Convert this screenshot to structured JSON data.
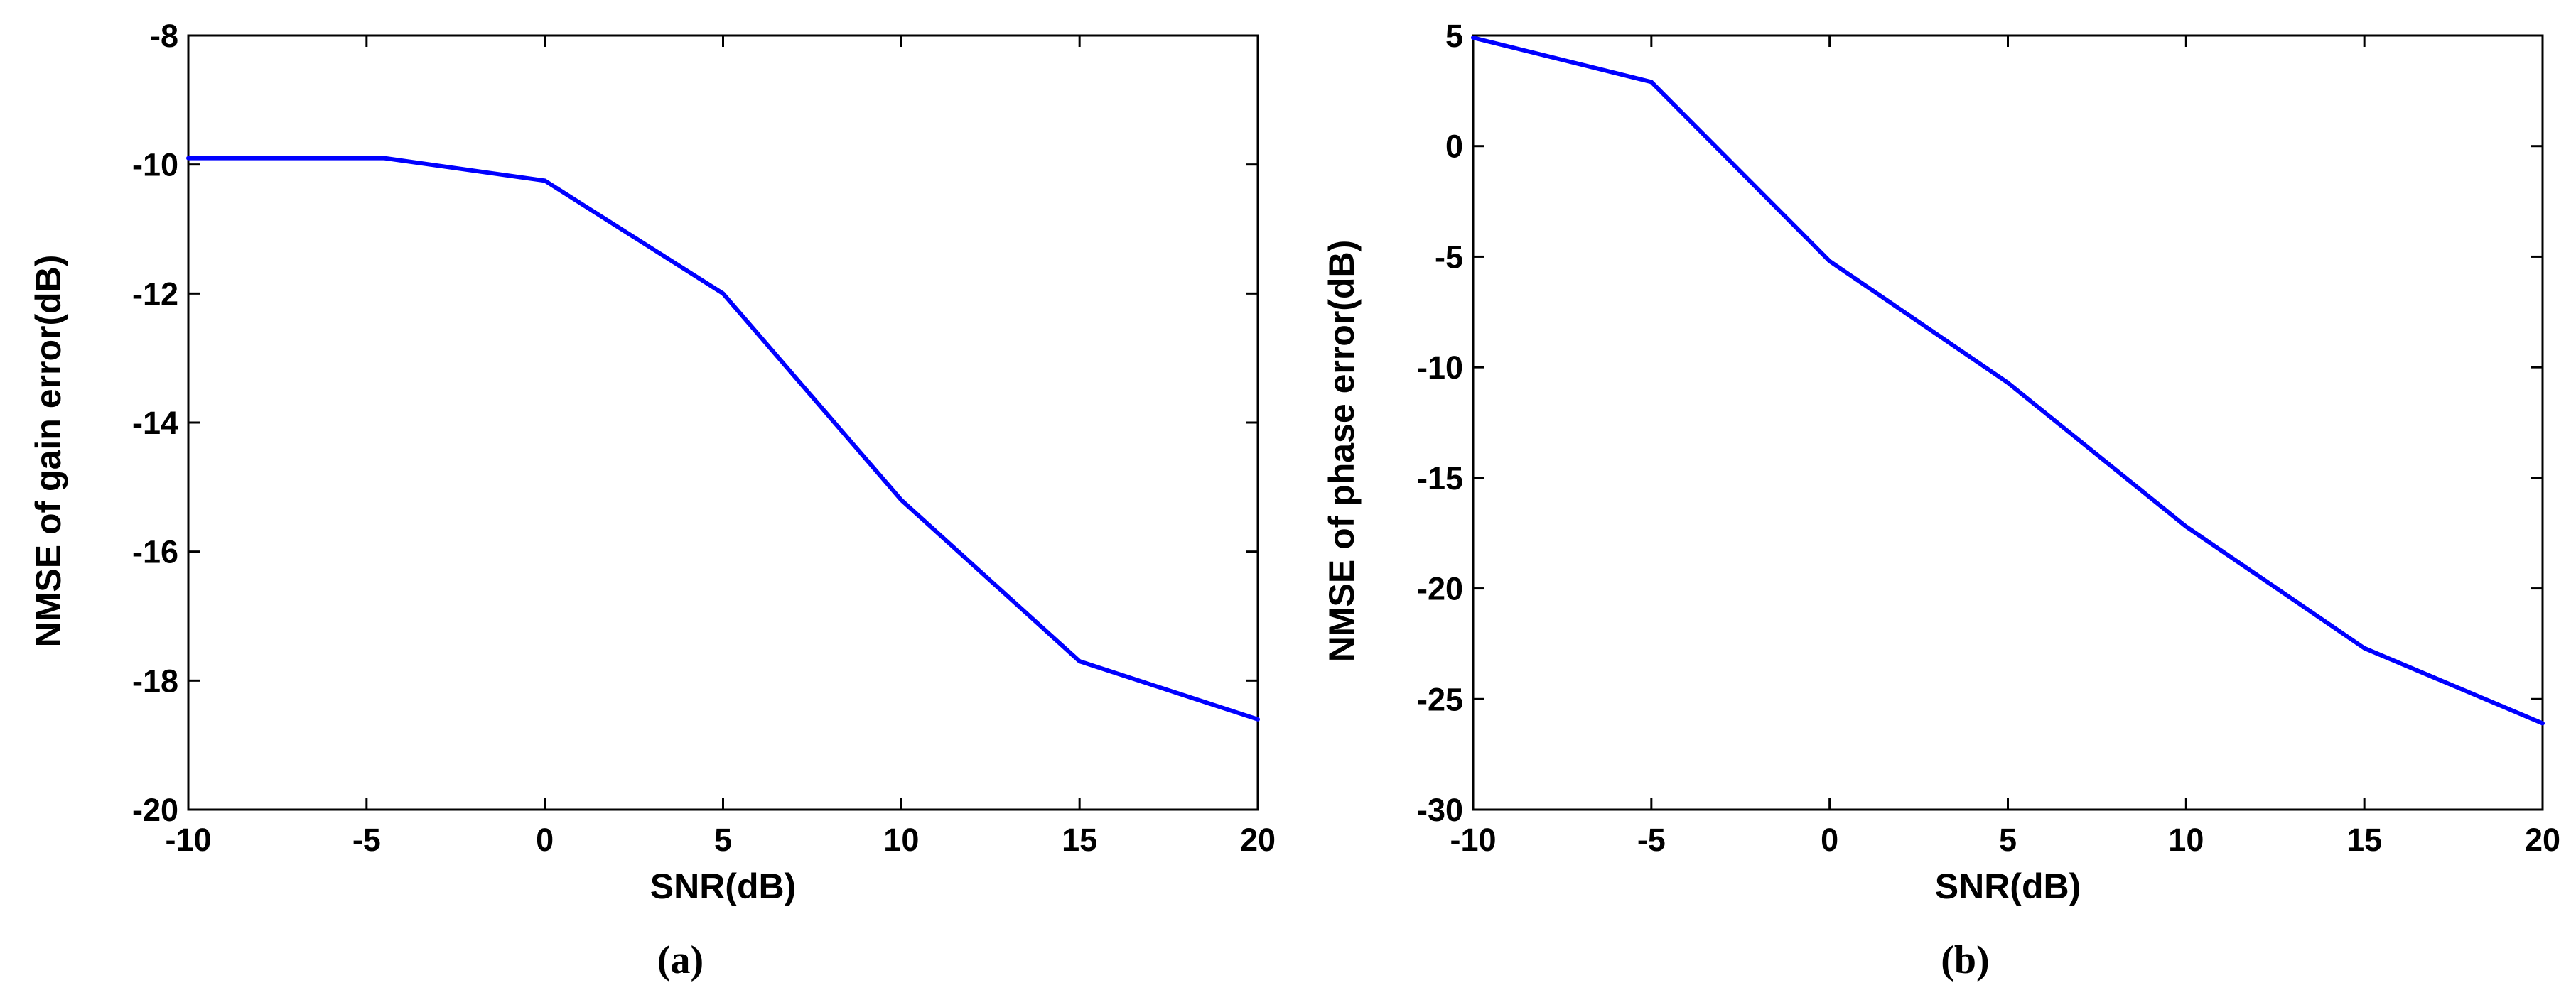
{
  "chart_data": [
    {
      "type": "line",
      "panel_label": "(a)",
      "xlabel": "SNR(dB)",
      "ylabel": "NMSE of gain error(dB)",
      "xlim": [
        -10,
        20
      ],
      "ylim": [
        -20,
        -8
      ],
      "xticks": [
        -10,
        -5,
        0,
        5,
        10,
        15,
        20
      ],
      "yticks": [
        -20,
        -18,
        -16,
        -14,
        -12,
        -10,
        -8
      ],
      "grid": false,
      "series": [
        {
          "color": "#0000ff",
          "x": [
            -10,
            -4.5,
            0,
            5,
            10,
            15,
            20
          ],
          "y": [
            -9.9,
            -9.9,
            -10.25,
            -12.0,
            -15.2,
            -17.7,
            -18.6
          ]
        }
      ]
    },
    {
      "type": "line",
      "panel_label": "(b)",
      "xlabel": "SNR(dB)",
      "ylabel": "NMSE of phase error(dB)",
      "xlim": [
        -10,
        20
      ],
      "ylim": [
        -30,
        5
      ],
      "xticks": [
        -10,
        -5,
        0,
        5,
        10,
        15,
        20
      ],
      "yticks": [
        -30,
        -25,
        -20,
        -15,
        -10,
        -5,
        0,
        5
      ],
      "grid": false,
      "series": [
        {
          "color": "#0000ff",
          "x": [
            -10,
            -5,
            0,
            5,
            10,
            15,
            20
          ],
          "y": [
            4.9,
            2.9,
            -5.2,
            -10.7,
            -17.2,
            -22.7,
            -26.1
          ]
        }
      ]
    }
  ]
}
